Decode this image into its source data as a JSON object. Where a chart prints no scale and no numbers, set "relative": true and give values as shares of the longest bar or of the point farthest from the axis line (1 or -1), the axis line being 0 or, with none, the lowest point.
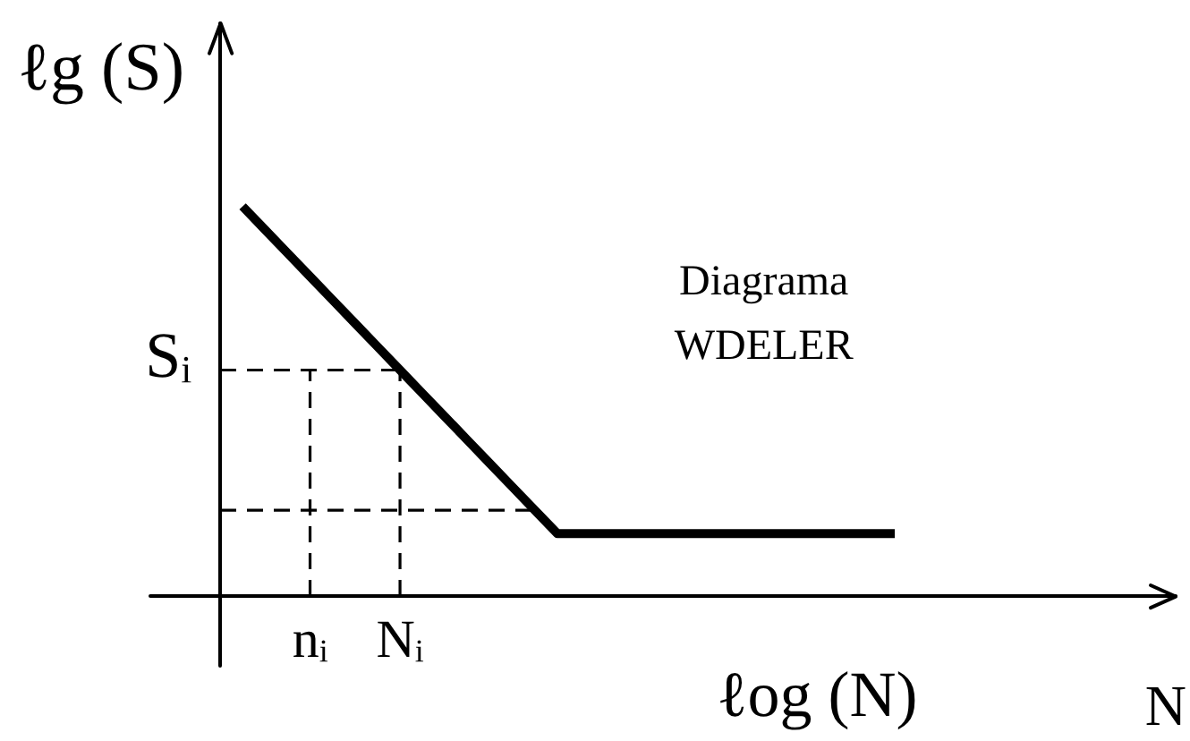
{
  "chart_data": {
    "type": "line",
    "relative": true,
    "xlabel": "ℓog (N)",
    "ylabel": "ℓg (S)",
    "ylim": [
      0,
      1.47
    ],
    "categories": [
      null,
      null,
      null,
      null,
      "nᵢ",
      null,
      null,
      null,
      "Nᵢ",
      null,
      null,
      null,
      null,
      null,
      null,
      null,
      null,
      null,
      null,
      null,
      null,
      null,
      null,
      null,
      null,
      null,
      null,
      null,
      null,
      null,
      null
    ],
    "series": [
      {
        "color": "#000000",
        "values": [
          null,
          1,
          0.94,
          0.88,
          0.82,
          0.76,
          0.7,
          0.64,
          0.58,
          0.52,
          0.46,
          0.4,
          0.34,
          0.28,
          0.22,
          0.16,
          0.16,
          0.16,
          0.16,
          0.16,
          0.16,
          0.16,
          0.16,
          0.16,
          0.16,
          0.16,
          0.16,
          0.16,
          0.16,
          0.16,
          0.16
        ]
      }
    ],
    "ref_lines": [
      {
        "axis": "y",
        "value": 0.58,
        "label": "Sᵢ",
        "color": "#000000",
        "line_style": "dashed"
      },
      {
        "axis": "y",
        "value": 0.22,
        "color": "#000000",
        "line_style": "dashed"
      },
      {
        "axis": "x",
        "value": "nᵢ",
        "color": "#000000",
        "line_style": "dashed"
      },
      {
        "axis": "x",
        "value": "Nᵢ",
        "color": "#000000",
        "line_style": "dashed"
      }
    ],
    "annotations": [
      "N",
      "Diagrama WDELER"
    ]
  }
}
